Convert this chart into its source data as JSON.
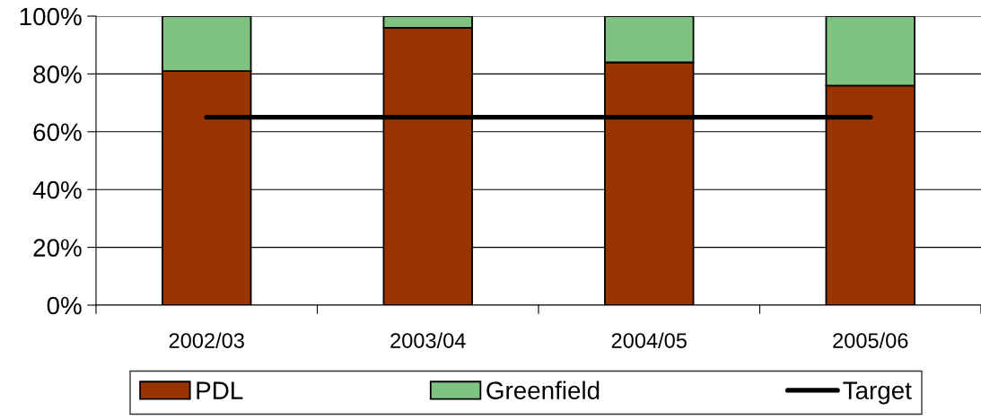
{
  "chart_data": {
    "type": "bar",
    "stacked": true,
    "categories": [
      "2002/03",
      "2003/04",
      "2004/05",
      "2005/06"
    ],
    "series": [
      {
        "name": "PDL",
        "color": "#993300",
        "values": [
          81,
          96,
          84,
          76
        ]
      },
      {
        "name": "Greenfield",
        "color": "#80c280",
        "values": [
          19,
          4,
          16,
          24
        ]
      },
      {
        "name": "Target",
        "type": "line",
        "color": "#000000",
        "values": [
          65,
          65,
          65,
          65
        ]
      }
    ],
    "ylim": [
      0,
      100
    ],
    "yticks": [
      {
        "value": 0,
        "label": "0%"
      },
      {
        "value": 20,
        "label": "20%"
      },
      {
        "value": 40,
        "label": "40%"
      },
      {
        "value": 60,
        "label": "60%"
      },
      {
        "value": 80,
        "label": "80%"
      },
      {
        "value": 100,
        "label": "100%"
      }
    ],
    "grid": "y",
    "legend": "bottom",
    "line_style": "solid"
  }
}
